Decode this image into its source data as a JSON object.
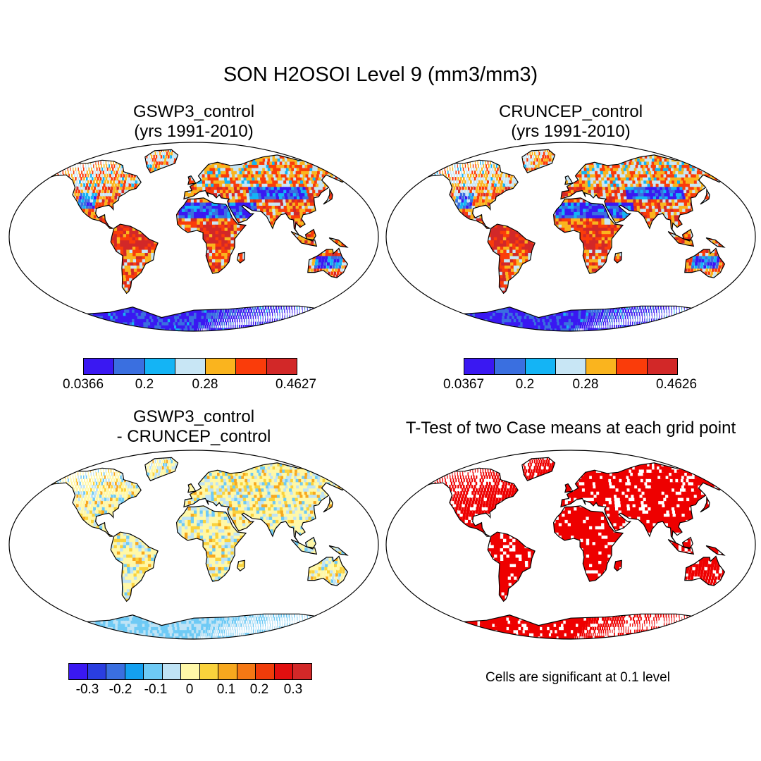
{
  "figure": {
    "title": "SON H2OSOI Level 9 (mm3/mm3)"
  },
  "panels": [
    {
      "id": "gswp3",
      "title_line1": "GSWP3_control",
      "title_line2": "(yrs 1991-2010)",
      "colorbar": {
        "colors": [
          "#3a18f2",
          "#3a6fe0",
          "#14b4f5",
          "#c8e6f5",
          "#fab41e",
          "#fa3c0a",
          "#d22828"
        ],
        "tick_labels": [
          "0.0366",
          "0.2",
          "0.28",
          "0.4627"
        ]
      }
    },
    {
      "id": "cruncep",
      "title_line1": "CRUNCEP_control",
      "title_line2": "(yrs 1991-2010)",
      "colorbar": {
        "colors": [
          "#3a18f2",
          "#3a6fe0",
          "#14b4f5",
          "#c8e6f5",
          "#fab41e",
          "#fa3c0a",
          "#d22828"
        ],
        "tick_labels": [
          "0.0367",
          "0.2",
          "0.28",
          "0.4626"
        ]
      }
    },
    {
      "id": "difference",
      "title_line1": "GSWP3_control",
      "title_line2": "- CRUNCEP_control",
      "colorbar": {
        "colors": [
          "#3a18f2",
          "#2a3ee0",
          "#3a6fe0",
          "#14a0f0",
          "#6ecaf5",
          "#bfe3f5",
          "#fff8a8",
          "#fad23c",
          "#f7a81e",
          "#f57814",
          "#f03c0a",
          "#e10f0f",
          "#d22828"
        ],
        "tick_labels": [
          "-0.3",
          "-0.2",
          "-0.1",
          "0",
          "0.1",
          "0.2",
          "0.3"
        ]
      }
    },
    {
      "id": "ttest",
      "title_line1": "T-Test of two Case means at each grid point",
      "note": "Cells are significant at 0.1 level",
      "significant_color": "#ee0000"
    }
  ]
}
